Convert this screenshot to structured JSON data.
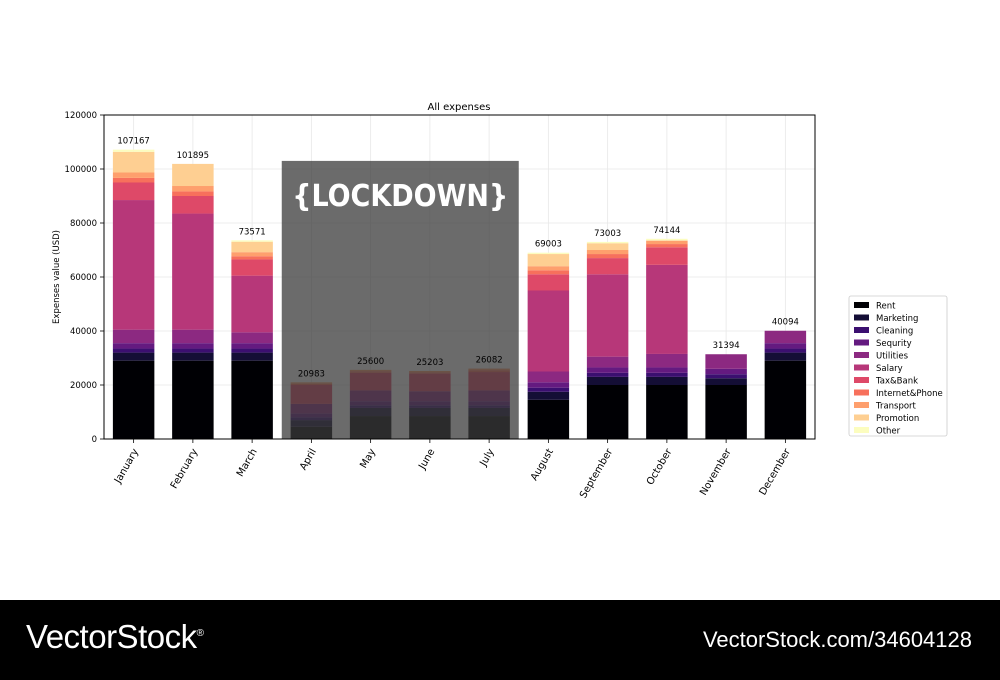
{
  "chart_data": {
    "type": "bar",
    "stacked": true,
    "title": "All expenses",
    "xlabel": "",
    "ylabel": "Expenses value (USD)",
    "ylim": [
      0,
      120000
    ],
    "yticks": [
      0,
      20000,
      40000,
      60000,
      80000,
      100000,
      120000
    ],
    "grid": true,
    "legend_position": "right",
    "categories": [
      "January",
      "February",
      "March",
      "April",
      "May",
      "June",
      "July",
      "August",
      "September",
      "October",
      "November",
      "December"
    ],
    "totals": [
      107167,
      101895,
      73571,
      20983,
      25600,
      25203,
      26082,
      69003,
      73003,
      74144,
      31394,
      40094
    ],
    "series": [
      {
        "name": "Rent",
        "color": "#000004",
        "values": [
          29000,
          29000,
          29000,
          4500,
          8500,
          8500,
          8500,
          14500,
          20000,
          20000,
          20000,
          29000
        ]
      },
      {
        "name": "Marketing",
        "color": "#140e36",
        "values": [
          3000,
          3000,
          3000,
          2500,
          3000,
          3000,
          3000,
          3000,
          3000,
          3000,
          2500,
          3000
        ]
      },
      {
        "name": "Cleaning",
        "color": "#3b0f70",
        "values": [
          1500,
          1500,
          1500,
          1000,
          1000,
          1000,
          1000,
          1500,
          1500,
          1500,
          1500,
          1500
        ]
      },
      {
        "name": "Sequrity",
        "color": "#641a80",
        "values": [
          2000,
          2000,
          2000,
          1500,
          1500,
          1500,
          1500,
          2000,
          2000,
          2000,
          2000,
          2000
        ]
      },
      {
        "name": "Utilities",
        "color": "#8c2981",
        "values": [
          5000,
          5000,
          4000,
          3500,
          4000,
          3700,
          4000,
          4000,
          4000,
          5000,
          5394,
          4594
        ]
      },
      {
        "name": "Salary",
        "color": "#b73779",
        "values": [
          48000,
          43000,
          21000,
          0,
          0,
          0,
          0,
          30000,
          30500,
          33000,
          0,
          0
        ]
      },
      {
        "name": "Tax&Bank",
        "color": "#de4968",
        "values": [
          6500,
          6500,
          6000,
          7000,
          6500,
          6500,
          6800,
          6000,
          6000,
          6500,
          0,
          0
        ]
      },
      {
        "name": "Internet&Phone",
        "color": "#f7705c",
        "values": [
          1700,
          1700,
          1200,
          500,
          600,
          500,
          700,
          1500,
          1500,
          1200,
          0,
          0
        ]
      },
      {
        "name": "Transport",
        "color": "#fe9f6d",
        "values": [
          2000,
          2000,
          1500,
          483,
          500,
          503,
          582,
          1500,
          1500,
          1200,
          0,
          0
        ]
      },
      {
        "name": "Promotion",
        "color": "#fecf92",
        "values": [
          7667,
          8195,
          3871,
          0,
          0,
          0,
          0,
          4503,
          2503,
          244,
          0,
          0
        ]
      },
      {
        "name": "Other",
        "color": "#fcfdbf",
        "values": [
          800,
          0,
          500,
          0,
          0,
          0,
          0,
          500,
          500,
          500,
          0,
          0
        ]
      }
    ],
    "annotation": {
      "text": "{LOCKDOWN}",
      "span": [
        "April",
        "July"
      ],
      "y_top": 103000
    }
  },
  "footer": {
    "brand": "VectorStock",
    "brand_mark": "®",
    "reference": "VectorStock.com/34604128"
  }
}
